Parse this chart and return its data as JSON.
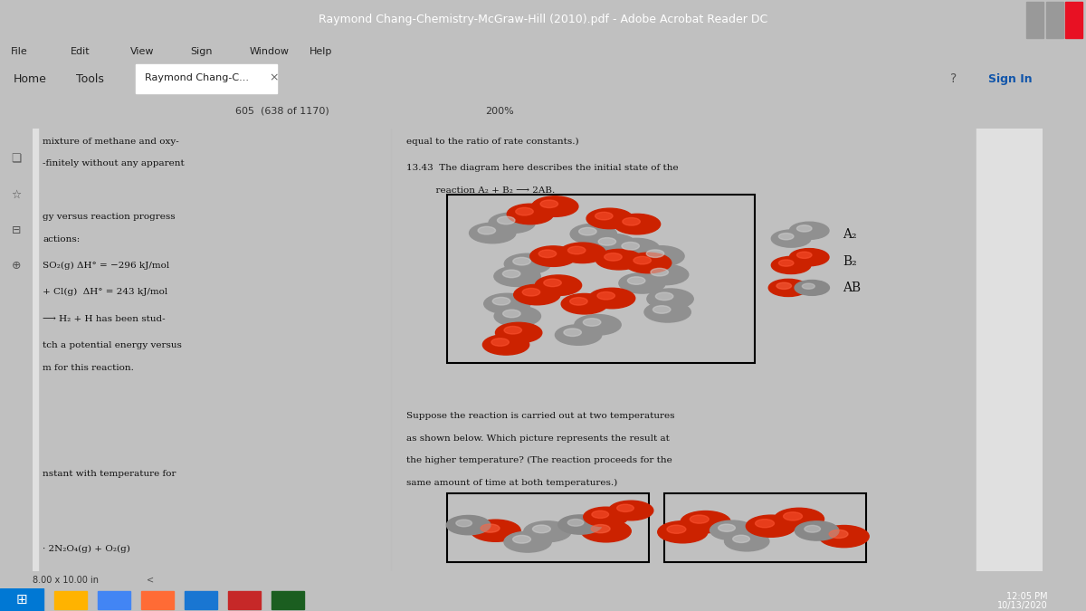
{
  "title_bar": "Raymond Chang-Chemistry-McGraw-Hill (2010).pdf - Adobe Acrobat Reader DC",
  "title_bar_bg": "#C0392B",
  "title_bar_fg": "#FFFFFF",
  "menu_bar_items": [
    "File",
    "Edit",
    "View",
    "Sign",
    "Window",
    "Help"
  ],
  "home_tab": "Home",
  "tools_tab": "Tools",
  "active_tab": "Raymond Chang-C...",
  "page_info": "605  (638 of 1170)",
  "zoom_level": "200%",
  "legend_labels": [
    "A₂",
    "B₂",
    "AB"
  ],
  "red_color": "#CC2200",
  "red_light": "#FF5533",
  "gray_color": "#909090",
  "gray_light": "#D0D0D0",
  "taskbar_bg": "#1A1A2E",
  "time_text": "12:05 PM",
  "date_text": "10/13/2020",
  "page_size_text": "8.00 x 10.00 in",
  "sign_in_text": "Sign In",
  "taskbar_colors": [
    "#FFB300",
    "#4285F4",
    "#FF6B35",
    "#1976D2",
    "#C62828",
    "#1B5E20"
  ]
}
